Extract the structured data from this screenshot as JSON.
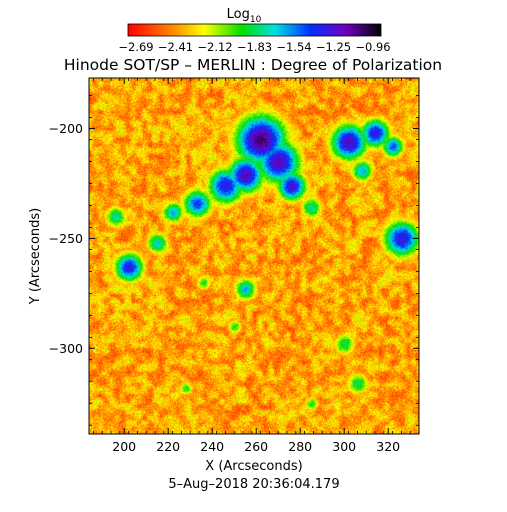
{
  "colorbar": {
    "label": "Log",
    "label_sub": "10",
    "tick_labels": [
      "−2.69",
      "−2.41",
      "−2.12",
      "−1.83",
      "−1.54",
      "−1.25",
      "−0.96"
    ],
    "range": [
      -2.69,
      -0.96
    ],
    "colormap": "rainbow (red-yellow-green-cyan-blue-violet-black)"
  },
  "chart_data": {
    "type": "heatmap",
    "title": "Hinode SOT/SP – MERLIN : Degree of Polarization",
    "xlabel": "X (Arcseconds)",
    "ylabel": "Y (Arcseconds)",
    "xlim": [
      184,
      334
    ],
    "ylim": [
      -339,
      -177
    ],
    "x_ticks": [
      200,
      220,
      240,
      260,
      280,
      300,
      320
    ],
    "y_ticks": [
      -200,
      -250,
      -300
    ],
    "x_tick_labels": [
      "200",
      "220",
      "240",
      "260",
      "280",
      "300",
      "320"
    ],
    "y_tick_labels": [
      "−200",
      "−250",
      "−300"
    ],
    "value_scale": "log10",
    "value_range": [
      -2.69,
      -0.96
    ],
    "strong_regions": [
      {
        "x": 262,
        "y": -205,
        "r": 7,
        "level": 0.92
      },
      {
        "x": 270,
        "y": -215,
        "r": 6,
        "level": 0.85
      },
      {
        "x": 255,
        "y": -221,
        "r": 5,
        "level": 0.85
      },
      {
        "x": 276,
        "y": -226,
        "r": 4,
        "level": 0.82
      },
      {
        "x": 246,
        "y": -226,
        "r": 5,
        "level": 0.78
      },
      {
        "x": 233,
        "y": -234,
        "r": 4,
        "level": 0.72
      },
      {
        "x": 222,
        "y": -238,
        "r": 3,
        "level": 0.62
      },
      {
        "x": 302,
        "y": -206,
        "r": 5,
        "level": 0.85
      },
      {
        "x": 314,
        "y": -202,
        "r": 4,
        "level": 0.8
      },
      {
        "x": 322,
        "y": -208,
        "r": 3,
        "level": 0.7
      },
      {
        "x": 308,
        "y": -219,
        "r": 3,
        "level": 0.62
      },
      {
        "x": 326,
        "y": -250,
        "r": 5,
        "level": 0.8
      },
      {
        "x": 202,
        "y": -263,
        "r": 4,
        "level": 0.78
      },
      {
        "x": 215,
        "y": -252,
        "r": 3,
        "level": 0.58
      },
      {
        "x": 255,
        "y": -273,
        "r": 3,
        "level": 0.62
      },
      {
        "x": 285,
        "y": -236,
        "r": 3,
        "level": 0.55
      },
      {
        "x": 300,
        "y": -298,
        "r": 3,
        "level": 0.5
      },
      {
        "x": 306,
        "y": -316,
        "r": 3,
        "level": 0.5
      },
      {
        "x": 285,
        "y": -325,
        "r": 2,
        "level": 0.45
      },
      {
        "x": 228,
        "y": -318,
        "r": 2,
        "level": 0.45
      },
      {
        "x": 196,
        "y": -240,
        "r": 3,
        "level": 0.55
      },
      {
        "x": 250,
        "y": -290,
        "r": 2,
        "level": 0.45
      },
      {
        "x": 236,
        "y": -270,
        "r": 2,
        "level": 0.45
      }
    ]
  },
  "timestamp": "5–Aug–2018 20:36:04.179"
}
